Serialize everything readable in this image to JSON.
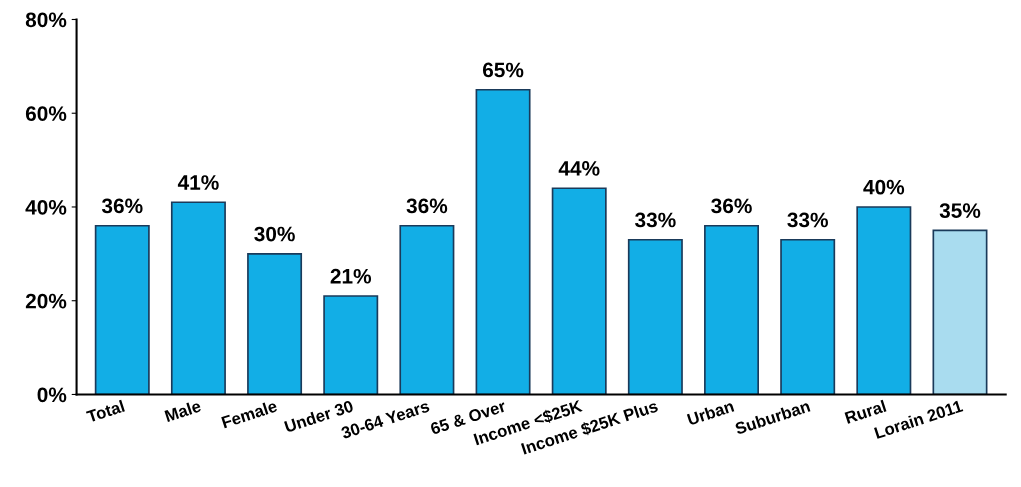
{
  "chart_data": {
    "type": "bar",
    "categories": [
      "Total",
      "Male",
      "Female",
      "Under 30",
      "30-64 Years",
      "65 & Over",
      "Income <$25K",
      "Income $25K Plus",
      "Urban",
      "Suburban",
      "Rural",
      "Lorain 2011"
    ],
    "values": [
      36,
      41,
      30,
      21,
      36,
      65,
      44,
      33,
      36,
      33,
      40,
      35
    ],
    "value_labels": [
      "36%",
      "41%",
      "30%",
      "21%",
      "36%",
      "65%",
      "44%",
      "33%",
      "36%",
      "33%",
      "40%",
      "35%"
    ],
    "colors": [
      "#12aee6",
      "#12aee6",
      "#12aee6",
      "#12aee6",
      "#12aee6",
      "#12aee6",
      "#12aee6",
      "#12aee6",
      "#12aee6",
      "#12aee6",
      "#12aee6",
      "#a9dcef"
    ],
    "ylim": [
      0,
      80
    ],
    "yticks": [
      {
        "value": 0,
        "label": "0%"
      },
      {
        "value": 20,
        "label": "20%"
      },
      {
        "value": 40,
        "label": "40%"
      },
      {
        "value": 60,
        "label": "60%"
      },
      {
        "value": 80,
        "label": "80%"
      }
    ],
    "grid": false
  }
}
